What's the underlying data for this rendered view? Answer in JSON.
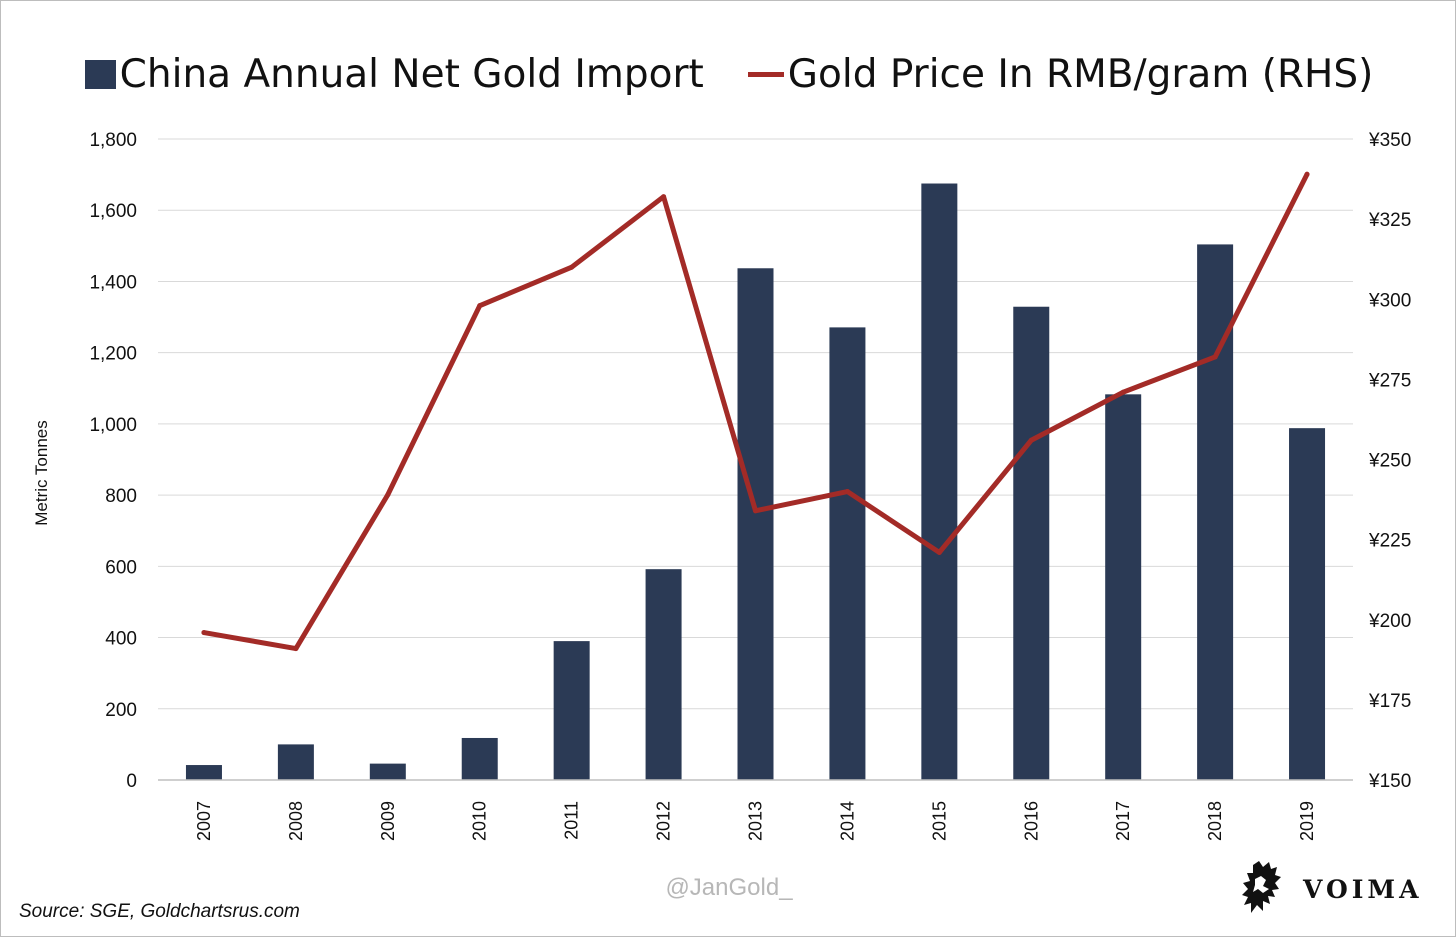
{
  "colors": {
    "bar": "#2b3a55",
    "line": "#a32b27",
    "grid": "#d9d9d9",
    "axis_text": "#111111"
  },
  "legend": {
    "bar_label": "China Annual Net Gold Import",
    "line_label": "Gold Price In RMB/gram (RHS)"
  },
  "footer": {
    "watermark": "@JanGold_",
    "source": "Source: SGE, Goldchartsrus.com",
    "logo_text": "VOIMA",
    "logo_icon": "heraldic-lion-icon"
  },
  "chart_data": {
    "type": "bar",
    "categories": [
      "2007",
      "2008",
      "2009",
      "2010",
      "2011",
      "2012",
      "2013",
      "2014",
      "2015",
      "2016",
      "2017",
      "2018",
      "2019"
    ],
    "series": [
      {
        "name": "China Annual Net Gold Import",
        "type": "bar",
        "axis": "left",
        "values": [
          42,
          100,
          46,
          118,
          390,
          592,
          1437,
          1271,
          1675,
          1329,
          1083,
          1504,
          988
        ]
      },
      {
        "name": "Gold Price In RMB/gram (RHS)",
        "type": "line",
        "axis": "right",
        "values": [
          196,
          191,
          239,
          298,
          310,
          332,
          234,
          240,
          221,
          256,
          271,
          282,
          339
        ]
      }
    ],
    "ylabel": "Metric Tonnes",
    "ylim": [
      0,
      1800
    ],
    "yticks": [
      "0",
      "200",
      "400",
      "600",
      "800",
      "1,000",
      "1,200",
      "1,400",
      "1,600",
      "1,800"
    ],
    "ylim_right": [
      150,
      350
    ],
    "yticks_right": [
      "¥150",
      "¥175",
      "¥200",
      "¥225",
      "¥250",
      "¥275",
      "¥300",
      "¥325",
      "¥350"
    ],
    "grid": true,
    "legend_position": "top"
  }
}
